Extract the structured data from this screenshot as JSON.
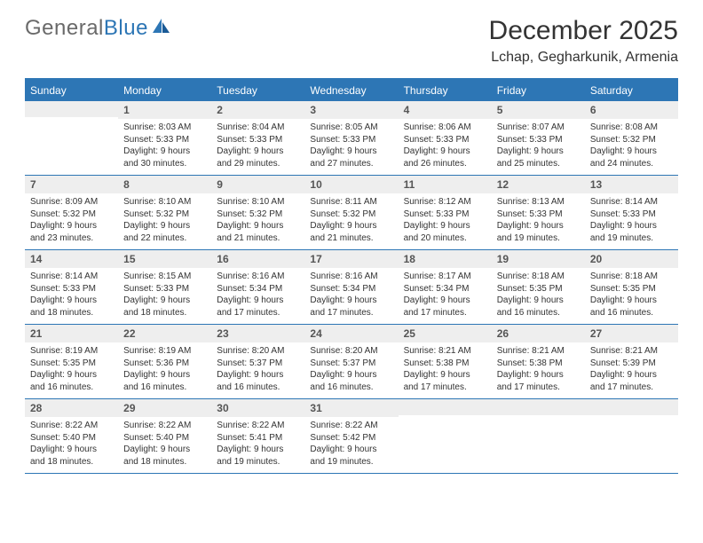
{
  "brand": {
    "name_gray": "General",
    "name_blue": "Blue"
  },
  "title": "December 2025",
  "location": "Lchap, Gegharkunik, Armenia",
  "colors": {
    "header_bg": "#2d76b5",
    "daynum_bg": "#eeeeee",
    "text": "#333333",
    "logo_gray": "#6a6a6a"
  },
  "day_names": [
    "Sunday",
    "Monday",
    "Tuesday",
    "Wednesday",
    "Thursday",
    "Friday",
    "Saturday"
  ],
  "weeks": [
    [
      null,
      {
        "n": "1",
        "sr": "8:03 AM",
        "ss": "5:33 PM",
        "dl": "9 hours and 30 minutes."
      },
      {
        "n": "2",
        "sr": "8:04 AM",
        "ss": "5:33 PM",
        "dl": "9 hours and 29 minutes."
      },
      {
        "n": "3",
        "sr": "8:05 AM",
        "ss": "5:33 PM",
        "dl": "9 hours and 27 minutes."
      },
      {
        "n": "4",
        "sr": "8:06 AM",
        "ss": "5:33 PM",
        "dl": "9 hours and 26 minutes."
      },
      {
        "n": "5",
        "sr": "8:07 AM",
        "ss": "5:33 PM",
        "dl": "9 hours and 25 minutes."
      },
      {
        "n": "6",
        "sr": "8:08 AM",
        "ss": "5:32 PM",
        "dl": "9 hours and 24 minutes."
      }
    ],
    [
      {
        "n": "7",
        "sr": "8:09 AM",
        "ss": "5:32 PM",
        "dl": "9 hours and 23 minutes."
      },
      {
        "n": "8",
        "sr": "8:10 AM",
        "ss": "5:32 PM",
        "dl": "9 hours and 22 minutes."
      },
      {
        "n": "9",
        "sr": "8:10 AM",
        "ss": "5:32 PM",
        "dl": "9 hours and 21 minutes."
      },
      {
        "n": "10",
        "sr": "8:11 AM",
        "ss": "5:32 PM",
        "dl": "9 hours and 21 minutes."
      },
      {
        "n": "11",
        "sr": "8:12 AM",
        "ss": "5:33 PM",
        "dl": "9 hours and 20 minutes."
      },
      {
        "n": "12",
        "sr": "8:13 AM",
        "ss": "5:33 PM",
        "dl": "9 hours and 19 minutes."
      },
      {
        "n": "13",
        "sr": "8:14 AM",
        "ss": "5:33 PM",
        "dl": "9 hours and 19 minutes."
      }
    ],
    [
      {
        "n": "14",
        "sr": "8:14 AM",
        "ss": "5:33 PM",
        "dl": "9 hours and 18 minutes."
      },
      {
        "n": "15",
        "sr": "8:15 AM",
        "ss": "5:33 PM",
        "dl": "9 hours and 18 minutes."
      },
      {
        "n": "16",
        "sr": "8:16 AM",
        "ss": "5:34 PM",
        "dl": "9 hours and 17 minutes."
      },
      {
        "n": "17",
        "sr": "8:16 AM",
        "ss": "5:34 PM",
        "dl": "9 hours and 17 minutes."
      },
      {
        "n": "18",
        "sr": "8:17 AM",
        "ss": "5:34 PM",
        "dl": "9 hours and 17 minutes."
      },
      {
        "n": "19",
        "sr": "8:18 AM",
        "ss": "5:35 PM",
        "dl": "9 hours and 16 minutes."
      },
      {
        "n": "20",
        "sr": "8:18 AM",
        "ss": "5:35 PM",
        "dl": "9 hours and 16 minutes."
      }
    ],
    [
      {
        "n": "21",
        "sr": "8:19 AM",
        "ss": "5:35 PM",
        "dl": "9 hours and 16 minutes."
      },
      {
        "n": "22",
        "sr": "8:19 AM",
        "ss": "5:36 PM",
        "dl": "9 hours and 16 minutes."
      },
      {
        "n": "23",
        "sr": "8:20 AM",
        "ss": "5:37 PM",
        "dl": "9 hours and 16 minutes."
      },
      {
        "n": "24",
        "sr": "8:20 AM",
        "ss": "5:37 PM",
        "dl": "9 hours and 16 minutes."
      },
      {
        "n": "25",
        "sr": "8:21 AM",
        "ss": "5:38 PM",
        "dl": "9 hours and 17 minutes."
      },
      {
        "n": "26",
        "sr": "8:21 AM",
        "ss": "5:38 PM",
        "dl": "9 hours and 17 minutes."
      },
      {
        "n": "27",
        "sr": "8:21 AM",
        "ss": "5:39 PM",
        "dl": "9 hours and 17 minutes."
      }
    ],
    [
      {
        "n": "28",
        "sr": "8:22 AM",
        "ss": "5:40 PM",
        "dl": "9 hours and 18 minutes."
      },
      {
        "n": "29",
        "sr": "8:22 AM",
        "ss": "5:40 PM",
        "dl": "9 hours and 18 minutes."
      },
      {
        "n": "30",
        "sr": "8:22 AM",
        "ss": "5:41 PM",
        "dl": "9 hours and 19 minutes."
      },
      {
        "n": "31",
        "sr": "8:22 AM",
        "ss": "5:42 PM",
        "dl": "9 hours and 19 minutes."
      },
      null,
      null,
      null
    ]
  ],
  "labels": {
    "sunrise": "Sunrise:",
    "sunset": "Sunset:",
    "daylight": "Daylight:"
  }
}
